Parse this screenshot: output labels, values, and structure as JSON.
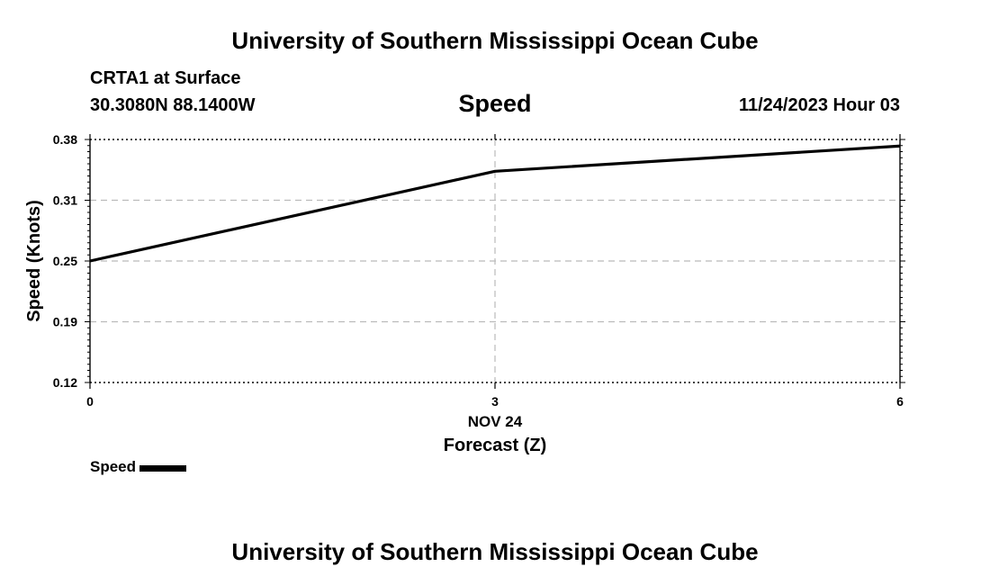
{
  "header": {
    "main_title": "University of Southern Mississippi Ocean Cube",
    "station": "CRTA1 at Surface",
    "coords": "30.3080N  88.1400W",
    "datetime": "11/24/2023 Hour 03"
  },
  "footer": {
    "main_title": "University of Southern Mississippi Ocean Cube"
  },
  "colors": {
    "line": "#000000",
    "grid": "#bbbbbb"
  },
  "chart_data": {
    "type": "line",
    "title": "Speed",
    "xlabel": "Forecast (Z)",
    "xlabel_date": "NOV 24",
    "ylabel": "Speed (Knots)",
    "xlim": [
      0,
      6
    ],
    "ylim": [
      0.12,
      0.38
    ],
    "x_ticks": [
      "0",
      "3",
      "6"
    ],
    "x_tick_values": [
      0,
      3,
      6
    ],
    "y_ticks": [
      "0.12",
      "0.19",
      "0.25",
      "0.31",
      "0.38"
    ],
    "y_tick_values": [
      0.12,
      0.185,
      0.25,
      0.315,
      0.38
    ],
    "grid": true,
    "legend_position": "bottom-left",
    "series": [
      {
        "name": "Speed",
        "x": [
          0,
          3,
          6
        ],
        "values": [
          0.25,
          0.346,
          0.373
        ]
      }
    ]
  }
}
